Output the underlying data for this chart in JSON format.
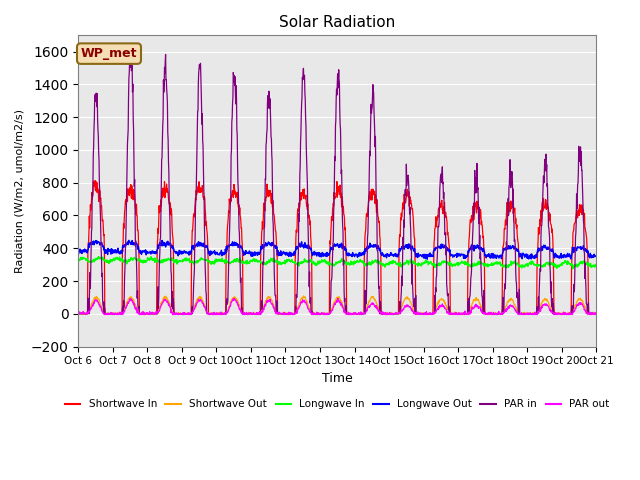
{
  "title": "Solar Radiation",
  "ylabel": "Radiation (W/m2, umol/m2/s)",
  "xlabel": "Time",
  "ylim": [
    -200,
    1700
  ],
  "yticks": [
    -200,
    0,
    200,
    400,
    600,
    800,
    1000,
    1200,
    1400,
    1600
  ],
  "xtick_labels": [
    "Oct 6",
    "Oct 7",
    "Oct 8",
    "Oct 9",
    "Oct 10",
    "Oct 11",
    "Oct 12",
    "Oct 13",
    "Oct 14",
    "Oct 15",
    "Oct 16",
    "Oct 17",
    "Oct 18",
    "Oct 19",
    "Oct 20",
    "Oct 21"
  ],
  "annotation_text": "WP_met",
  "annotation_color": "#8B0000",
  "annotation_bg": "#F5DEB3",
  "bg_color": "#E8E8E8",
  "n_days": 15,
  "points_per_day": 96,
  "sw_in_peaks": [
    780,
    760,
    760,
    770,
    750,
    730,
    730,
    760,
    740,
    720,
    660,
    660,
    660,
    670,
    640
  ],
  "sw_out_peaks": [
    100,
    100,
    100,
    100,
    100,
    100,
    100,
    100,
    100,
    100,
    90,
    90,
    90,
    90,
    90
  ],
  "lw_in_base": [
    330,
    328,
    325,
    322,
    320,
    318,
    315,
    312,
    310,
    308,
    305,
    302,
    300,
    300,
    302
  ],
  "lw_out_base": [
    380,
    378,
    375,
    372,
    370,
    368,
    365,
    362,
    360,
    358,
    356,
    354,
    352,
    350,
    352
  ],
  "par_in_peaks": [
    1370,
    1580,
    1520,
    1490,
    1480,
    1380,
    1475,
    1450,
    1370,
    860,
    840,
    835,
    850,
    940,
    980
  ],
  "par_out_peaks": [
    80,
    85,
    85,
    85,
    85,
    80,
    80,
    80,
    60,
    50,
    50,
    50,
    50,
    60,
    65
  ]
}
